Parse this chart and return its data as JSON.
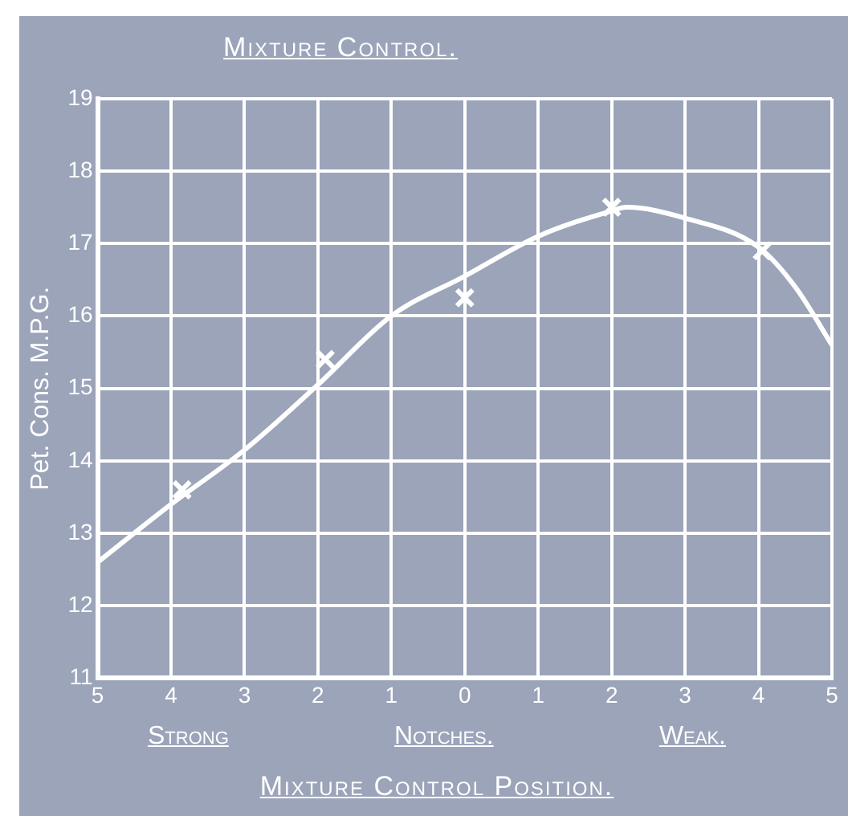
{
  "chart_data": {
    "type": "line",
    "title": "Mixture Control.",
    "xlabel": "Mixture Control Position.",
    "ylabel": "Pet. Cons. M.P.G.",
    "annotations": [
      "Strong",
      "Notches.",
      "Weak."
    ],
    "series": [
      {
        "type": "line",
        "color": "#ffffff",
        "marker": "none",
        "line_style": "solid",
        "x": [
          -5,
          -4,
          -3,
          -2,
          -1,
          0,
          1,
          2,
          2.2,
          3,
          4,
          4.5,
          5
        ],
        "values": [
          12.6,
          13.4,
          14.15,
          15.05,
          16.0,
          16.55,
          17.1,
          17.45,
          17.5,
          17.35,
          16.95,
          16.4,
          15.6
        ]
      },
      {
        "type": "scatter",
        "color": "#ffffff",
        "marker": "cross",
        "x": [
          -3.85,
          -1.9,
          0,
          2,
          4.05
        ],
        "values": [
          13.6,
          15.4,
          16.25,
          17.5,
          16.9
        ]
      }
    ],
    "xlim": [
      -5,
      5
    ],
    "xticks": [
      {
        "value": -5,
        "label": "5"
      },
      {
        "value": -4,
        "label": "4"
      },
      {
        "value": -3,
        "label": "3"
      },
      {
        "value": -2,
        "label": "2"
      },
      {
        "value": -1,
        "label": "1"
      },
      0,
      1,
      2,
      3,
      4,
      5
    ],
    "ylim": [
      11,
      19
    ],
    "yticks": [
      11,
      12,
      13,
      14,
      15,
      16,
      17,
      18,
      19
    ],
    "grid": true,
    "legend": false
  }
}
